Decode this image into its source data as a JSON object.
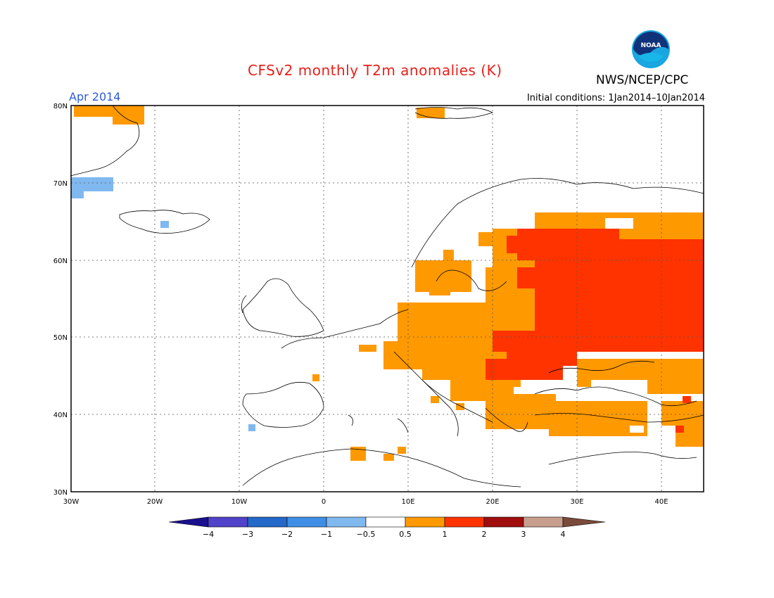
{
  "header": {
    "title": "CFSv2 monthly T2m anomalies (K)",
    "brand": "NWS/NCEP/CPC",
    "logo_text": "NOAA",
    "period": "Apr 2014",
    "initial_conditions": "Initial conditions: 1Jan2014–10Jan2014"
  },
  "map": {
    "lat_ticks": [
      "80N",
      "70N",
      "60N",
      "50N",
      "40N",
      "30N"
    ],
    "lon_ticks": [
      "30W",
      "20W",
      "10W",
      "0",
      "10E",
      "20E",
      "30E",
      "40E"
    ],
    "lat_range": [
      30,
      80
    ],
    "lon_range": [
      -30,
      45
    ]
  },
  "colorbar": {
    "labels": [
      "−4",
      "−3",
      "−2",
      "−1",
      "−0.5",
      "0.5",
      "1",
      "2",
      "3",
      "4"
    ],
    "colors": [
      "#1a0f8c",
      "#5042c9",
      "#2468c8",
      "#3f8ee6",
      "#80b8f0",
      "#ffffff",
      "#ff9900",
      "#ff3300",
      "#a00d0d",
      "#c89e8e",
      "#7a4a3a"
    ]
  }
}
